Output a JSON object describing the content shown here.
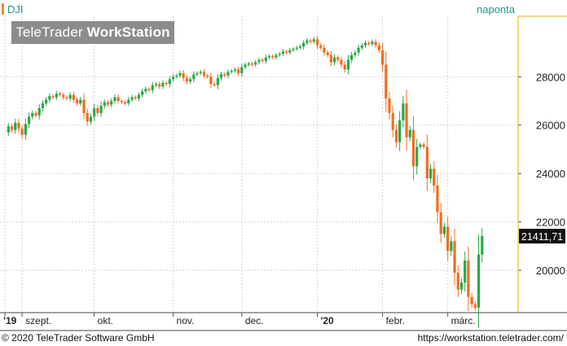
{
  "chart_data": {
    "type": "candlestick",
    "symbol": "DJI",
    "interval_label": "naponta",
    "last_value_label": "21411,71",
    "last_value": 21411.71,
    "ylim": [
      18250,
      30500
    ],
    "y_ticks": [
      {
        "value": 20000,
        "label": "20000"
      },
      {
        "value": 22000,
        "label": "22000"
      },
      {
        "value": 24000,
        "label": "24000"
      },
      {
        "value": 26000,
        "label": "26000"
      },
      {
        "value": 28000,
        "label": "28000"
      }
    ],
    "x_ticks": [
      {
        "index": 0,
        "label": "'19",
        "bold": true
      },
      {
        "index": 5,
        "label": "szept.",
        "bold": false
      },
      {
        "index": 26,
        "label": "okt.",
        "bold": false
      },
      {
        "index": 49,
        "label": "nov.",
        "bold": false
      },
      {
        "index": 69,
        "label": "dec.",
        "bold": false
      },
      {
        "index": 91,
        "label": "'20",
        "bold": true
      },
      {
        "index": 110,
        "label": "febr.",
        "bold": false
      },
      {
        "index": 129,
        "label": "márc.",
        "bold": false
      }
    ],
    "candle_count": 150,
    "close_series": [
      25700,
      25950,
      25800,
      26100,
      25850,
      25600,
      26050,
      26350,
      26500,
      26400,
      26700,
      26900,
      27050,
      27200,
      27150,
      27300,
      27250,
      27150,
      27100,
      27250,
      27050,
      26900,
      27050,
      26500,
      26150,
      26350,
      26700,
      26500,
      26800,
      26950,
      26850,
      27000,
      27150,
      27000,
      26950,
      26900,
      27050,
      27150,
      27100,
      27250,
      27400,
      27500,
      27450,
      27650,
      27700,
      27600,
      27750,
      27700,
      27900,
      28000,
      28050,
      28150,
      27950,
      27800,
      27900,
      28100,
      28150,
      28200,
      28050,
      28000,
      27700,
      27650,
      27950,
      28100,
      28050,
      28200,
      28250,
      28300,
      28150,
      28400,
      28500,
      28550,
      28500,
      28600,
      28700,
      28650,
      28800,
      28850,
      28800,
      28900,
      28950,
      29050,
      29000,
      29100,
      29150,
      29200,
      29250,
      29400,
      29500,
      29450,
      29550,
      29300,
      29200,
      29000,
      28900,
      28600,
      28800,
      28700,
      28500,
      28300,
      28700,
      28900,
      29000,
      29200,
      29300,
      29400,
      29350,
      29450,
      29300,
      29100,
      28500,
      27100,
      26500,
      25800,
      25300,
      26200,
      26900,
      25500,
      25800,
      24300,
      25100,
      25200,
      25100,
      23800,
      24200,
      23500,
      22400,
      21500,
      21800,
      20800,
      21200,
      19900,
      19200,
      19500,
      20400,
      18900,
      18600,
      18450,
      20650,
      21411,
      21411,
      21411,
      21411,
      21411,
      21411,
      21411,
      21411,
      21411,
      21411,
      21411
    ],
    "visible_candles": 140,
    "footer": {
      "copyright": "© 2020 TeleTrader Software GmbH",
      "url": "https://workstation.teletrader.com/"
    },
    "watermark": {
      "part1": "TeleTrader ",
      "part2": "WorkStation"
    },
    "colors": {
      "up": "#2aa84a",
      "down": "#f26d21",
      "grid": "#d6d6d6",
      "axis_line": "#e0b000",
      "symbol_bar": "#f28c28",
      "interval_text": "#1c9a8e",
      "last_box": "#111111"
    }
  }
}
